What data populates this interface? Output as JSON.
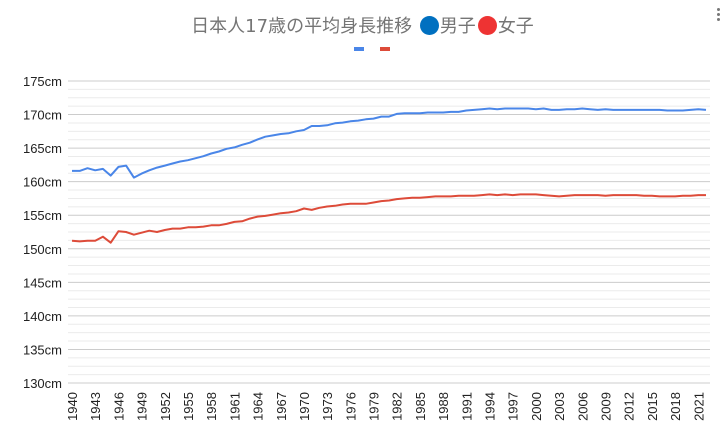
{
  "chart_data": {
    "type": "line",
    "title": {
      "main": "日本人17歳の平均身長推移",
      "male_label": "男子",
      "female_label": "女子"
    },
    "title_icon_colors": {
      "male": "#0070c0",
      "female": "#ee3333"
    },
    "x_start": 1940,
    "x_end": 2022,
    "x_tick_labels": [
      "1940",
      "1943",
      "1946",
      "1949",
      "1952",
      "1955",
      "1958",
      "1961",
      "1964",
      "1967",
      "1970",
      "1973",
      "1976",
      "1979",
      "1982",
      "1985",
      "1988",
      "1991",
      "1994",
      "1997",
      "2000",
      "2003",
      "2006",
      "2009",
      "2012",
      "2015",
      "2018",
      "2021"
    ],
    "y_tick_labels": [
      "130cm",
      "135cm",
      "140cm",
      "145cm",
      "150cm",
      "155cm",
      "160cm",
      "165cm",
      "170cm",
      "175cm"
    ],
    "ylim": [
      130,
      175
    ],
    "y_unit": "cm",
    "grid": true,
    "legend": "top",
    "series": [
      {
        "color": "#4a86e8",
        "values": [
          161.6,
          161.6,
          162.0,
          161.7,
          161.9,
          160.9,
          162.2,
          162.4,
          160.6,
          161.2,
          161.7,
          162.1,
          162.4,
          162.7,
          163.0,
          163.2,
          163.5,
          163.8,
          164.2,
          164.5,
          164.9,
          165.1,
          165.5,
          165.8,
          166.3,
          166.7,
          166.9,
          167.1,
          167.2,
          167.5,
          167.7,
          168.3,
          168.3,
          168.4,
          168.7,
          168.8,
          169.0,
          169.1,
          169.3,
          169.4,
          169.7,
          169.7,
          170.1,
          170.2,
          170.2,
          170.2,
          170.3,
          170.3,
          170.3,
          170.4,
          170.4,
          170.6,
          170.7,
          170.8,
          170.9,
          170.8,
          170.9,
          170.9,
          170.9,
          170.9,
          170.8,
          170.9,
          170.7,
          170.7,
          170.8,
          170.8,
          170.9,
          170.8,
          170.7,
          170.8,
          170.7,
          170.7,
          170.7,
          170.7,
          170.7,
          170.7,
          170.7,
          170.6,
          170.6,
          170.6,
          170.7,
          170.8,
          170.7
        ]
      },
      {
        "color": "#dd4b39",
        "values": [
          151.2,
          151.1,
          151.2,
          151.2,
          151.8,
          150.9,
          152.6,
          152.5,
          152.1,
          152.4,
          152.7,
          152.5,
          152.8,
          153.0,
          153.0,
          153.2,
          153.2,
          153.3,
          153.5,
          153.5,
          153.7,
          154.0,
          154.1,
          154.5,
          154.8,
          154.9,
          155.1,
          155.3,
          155.4,
          155.6,
          156.0,
          155.8,
          156.1,
          156.3,
          156.4,
          156.6,
          156.7,
          156.7,
          156.7,
          156.9,
          157.1,
          157.2,
          157.4,
          157.5,
          157.6,
          157.6,
          157.7,
          157.8,
          157.8,
          157.8,
          157.9,
          157.9,
          157.9,
          158.0,
          158.1,
          158.0,
          158.1,
          158.0,
          158.1,
          158.1,
          158.1,
          158.0,
          157.9,
          157.8,
          157.9,
          158.0,
          158.0,
          158.0,
          158.0,
          157.9,
          158.0,
          158.0,
          158.0,
          158.0,
          157.9,
          157.9,
          157.8,
          157.8,
          157.8,
          157.9,
          157.9,
          158.0,
          158.0
        ]
      }
    ]
  }
}
